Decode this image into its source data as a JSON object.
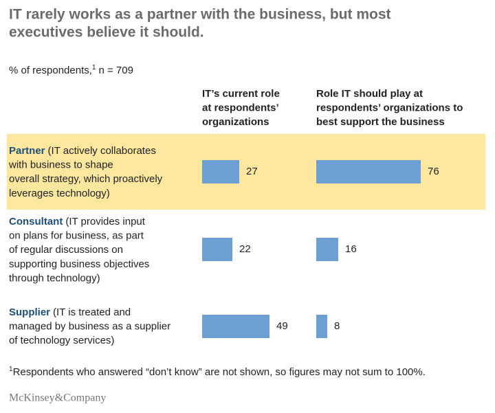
{
  "chart_data": {
    "type": "bar",
    "title": [
      "IT rarely works as a partner with the business, but most",
      "executives believe it should."
    ],
    "subtitle": "% of respondents,",
    "subtitle_note": "1",
    "sample": "n = 709",
    "categories": [
      {
        "name": "Partner",
        "description": [
          "(IT actively collaborates",
          "with business to shape",
          "overall strategy, which proactively",
          "leverages technology)"
        ]
      },
      {
        "name": "Consultant",
        "description": [
          "(IT provides input",
          "on plans for business, as part",
          "of regular discussions on",
          "supporting business objectives",
          "through technology)"
        ]
      },
      {
        "name": "Supplier",
        "description": [
          "(IT is treated and",
          "managed by business as a supplier",
          "of technology services)"
        ]
      }
    ],
    "series": [
      {
        "name": [
          "IT’s current role",
          "at respondents’",
          "organizations"
        ],
        "color": "#6d9fd3",
        "values": [
          27,
          22,
          49
        ]
      },
      {
        "name": [
          "Role IT should play at",
          "respondents’ organizations to",
          "best support the business"
        ],
        "color": "#6d9fd3",
        "values": [
          76,
          16,
          8
        ]
      }
    ],
    "xlim": [
      0,
      100
    ],
    "highlight": "Partner",
    "highlight_color": "#fce79f",
    "footnote_mark": "1",
    "footnote": "Respondents who answered “don’t know” are not shown, so figures may not sum to 100%.",
    "source": "McKinsey&Company"
  }
}
